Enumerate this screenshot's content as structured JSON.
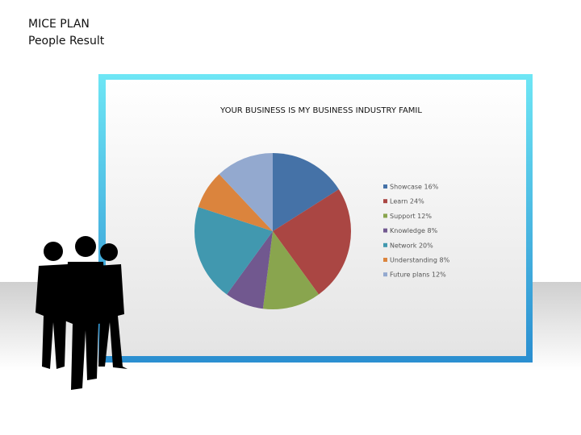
{
  "header": {
    "title": "MICE PLAN",
    "subtitle": "People Result"
  },
  "chart_data": {
    "type": "pie",
    "title": "YOUR BUSINESS IS MY BUSINESS INDUSTRY FAMIL",
    "categories": [
      "Showcase 16%",
      "Learn 24%",
      "Support 12%",
      "Knowledge 8%",
      "Network 20%",
      "Understanding 8%",
      "Future plans 12%"
    ],
    "values": [
      16,
      24,
      12,
      8,
      20,
      8,
      12
    ],
    "colors": [
      "#4572a7",
      "#aa4643",
      "#89a54e",
      "#71588f",
      "#4198af",
      "#db843d",
      "#93a9cf"
    ],
    "legend": "right"
  }
}
